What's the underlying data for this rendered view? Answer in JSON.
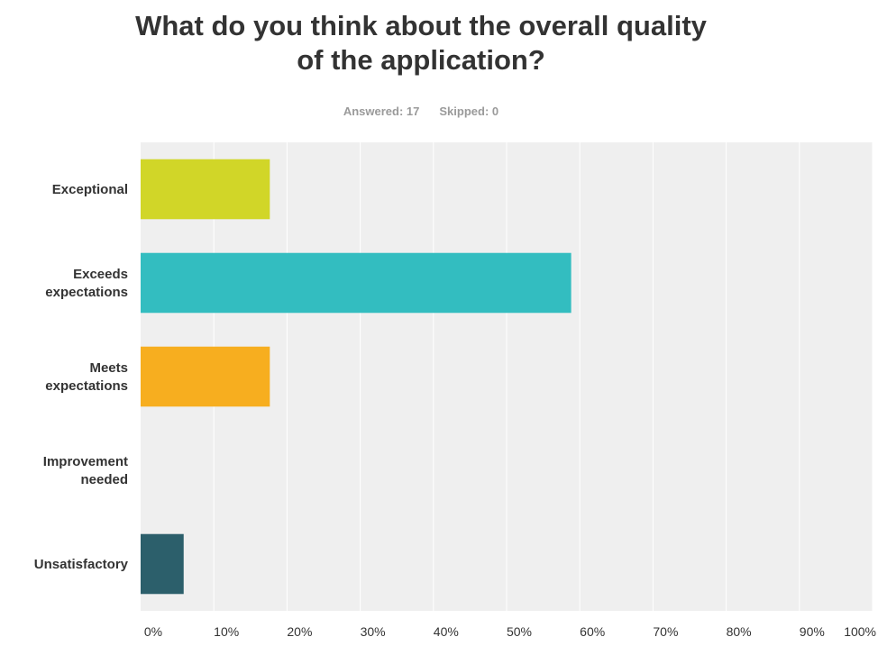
{
  "chart_data": {
    "type": "bar",
    "orientation": "horizontal",
    "title": "What do you think about the overall quality of the application?",
    "title_lines": [
      "What do you think about the overall quality",
      "of the application?"
    ],
    "answered_label": "Answered: 17",
    "skipped_label": "Skipped: 0",
    "categories": [
      [
        "Exceptional"
      ],
      [
        "Exceeds",
        "expectations"
      ],
      [
        "Meets",
        "expectations"
      ],
      [
        "Improvement",
        "needed"
      ],
      [
        "Unsatisfactory"
      ]
    ],
    "values": [
      17.65,
      58.82,
      17.65,
      0,
      5.88
    ],
    "colors": [
      "#d1d628",
      "#33bdc0",
      "#f7ae1f",
      "#e05b43",
      "#2c5f6b"
    ],
    "x_ticks": [
      "0%",
      "10%",
      "20%",
      "30%",
      "40%",
      "50%",
      "60%",
      "70%",
      "80%",
      "90%",
      "100%"
    ],
    "xlim": [
      0,
      100
    ],
    "grid": true,
    "plot_background": "#efefef"
  }
}
